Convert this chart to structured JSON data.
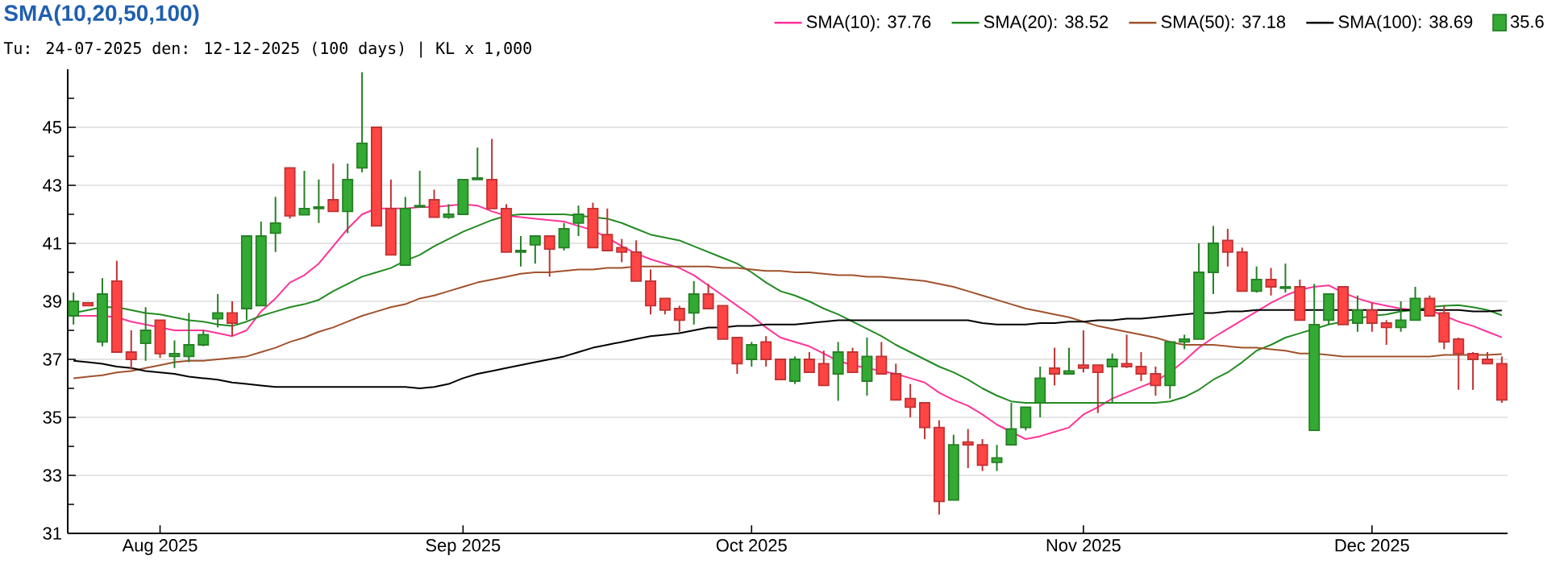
{
  "chart_data": {
    "type": "candlestick",
    "title": "SMA(10,20,50,100)",
    "subtitle": "Tu: 24-07-2025 den: 12-12-2025 (100 days) | KL x 1,000",
    "categories": [
      null,
      null,
      null,
      null,
      null,
      null,
      "Aug 2025",
      null,
      null,
      null,
      null,
      null,
      null,
      null,
      null,
      null,
      null,
      null,
      null,
      null,
      null,
      null,
      null,
      null,
      null,
      null,
      null,
      "Sep 2025",
      null,
      null,
      null,
      null,
      null,
      null,
      null,
      null,
      null,
      null,
      null,
      null,
      null,
      null,
      null,
      null,
      null,
      null,
      null,
      "Oct 2025",
      null,
      null,
      null,
      null,
      null,
      null,
      null,
      null,
      null,
      null,
      null,
      null,
      null,
      null,
      null,
      null,
      null,
      null,
      null,
      null,
      null,
      null,
      "Nov 2025",
      null,
      null,
      null,
      null,
      null,
      null,
      null,
      null,
      null,
      null,
      null,
      null,
      null,
      null,
      null,
      null,
      null,
      null,
      null,
      "Dec 2025",
      null,
      null,
      null,
      null,
      null,
      null,
      null,
      null,
      null
    ],
    "ylim": [
      31,
      47
    ],
    "yticks": [
      31,
      {
        "value": 32,
        "label": null
      },
      33,
      {
        "value": 34,
        "label": null
      },
      35,
      {
        "value": 36,
        "label": null
      },
      37,
      {
        "value": 38,
        "label": null
      },
      39,
      {
        "value": 40,
        "label": null
      },
      41,
      {
        "value": 42,
        "label": null
      },
      43,
      {
        "value": 44,
        "label": null
      },
      45,
      {
        "value": 46,
        "label": null
      }
    ],
    "grid": "y",
    "legend": "top",
    "series": [
      {
        "type": "line",
        "name": "SMA(10): 37.76",
        "color": "#ff3399",
        "values": [
          38.5,
          38.5,
          38.5,
          38.45,
          38.3,
          38.2,
          38.1,
          38.0,
          38.0,
          38.0,
          37.9,
          37.8,
          38.0,
          38.65,
          39.1,
          39.65,
          39.9,
          40.3,
          40.9,
          41.5,
          42.0,
          42.2,
          42.2,
          42.2,
          42.25,
          42.25,
          42.3,
          42.35,
          42.3,
          42.1,
          41.95,
          41.9,
          41.85,
          41.8,
          41.75,
          41.6,
          41.45,
          41.2,
          40.9,
          40.65,
          40.45,
          40.3,
          40.15,
          39.9,
          39.55,
          39.2,
          38.85,
          38.5,
          38.1,
          37.75,
          37.6,
          37.45,
          37.2,
          36.95,
          36.8,
          36.7,
          36.6,
          36.5,
          36.35,
          36.2,
          35.85,
          35.6,
          35.4,
          35.1,
          34.75,
          34.5,
          34.25,
          34.35,
          34.5,
          34.65,
          35.1,
          35.35,
          35.65,
          35.85,
          36.05,
          36.25,
          36.55,
          36.95,
          37.4,
          37.75,
          38.05,
          38.35,
          38.65,
          38.95,
          39.2,
          39.4,
          39.5,
          39.55,
          39.3,
          39.1,
          38.95,
          38.85,
          38.75,
          38.7,
          38.7,
          38.5,
          38.3,
          38.15,
          37.95,
          37.76
        ]
      },
      {
        "type": "line",
        "name": "SMA(20): 38.52",
        "color": "#228b22",
        "values": [
          38.6,
          38.7,
          38.8,
          38.8,
          38.7,
          38.6,
          38.55,
          38.45,
          38.35,
          38.3,
          38.2,
          38.15,
          38.3,
          38.5,
          38.65,
          38.8,
          38.9,
          39.05,
          39.35,
          39.6,
          39.85,
          40.0,
          40.15,
          40.4,
          40.6,
          40.9,
          41.15,
          41.4,
          41.6,
          41.8,
          41.95,
          42.0,
          42.0,
          42.0,
          42.0,
          41.95,
          41.9,
          41.85,
          41.7,
          41.5,
          41.3,
          41.2,
          41.1,
          40.9,
          40.7,
          40.5,
          40.3,
          40.0,
          39.65,
          39.35,
          39.2,
          39.0,
          38.75,
          38.55,
          38.3,
          38.05,
          37.8,
          37.5,
          37.25,
          37.0,
          36.75,
          36.55,
          36.3,
          36.0,
          35.75,
          35.55,
          35.5,
          35.5,
          35.5,
          35.5,
          35.5,
          35.5,
          35.5,
          35.5,
          35.5,
          35.5,
          35.55,
          35.7,
          35.95,
          36.3,
          36.55,
          36.9,
          37.3,
          37.5,
          37.75,
          37.9,
          38.05,
          38.2,
          38.3,
          38.4,
          38.5,
          38.55,
          38.65,
          38.7,
          38.8,
          38.85,
          38.87,
          38.8,
          38.7,
          38.52
        ]
      },
      {
        "type": "line",
        "name": "SMA(50): 37.18",
        "color": "#a0522d",
        "values": [
          36.35,
          36.4,
          36.45,
          36.55,
          36.6,
          36.7,
          36.8,
          36.9,
          36.95,
          36.95,
          37.0,
          37.05,
          37.1,
          37.25,
          37.4,
          37.6,
          37.75,
          37.95,
          38.1,
          38.3,
          38.5,
          38.65,
          38.8,
          38.9,
          39.1,
          39.2,
          39.35,
          39.5,
          39.65,
          39.75,
          39.85,
          39.95,
          40.0,
          40.0,
          40.05,
          40.1,
          40.1,
          40.15,
          40.15,
          40.2,
          40.2,
          40.2,
          40.2,
          40.2,
          40.2,
          40.15,
          40.15,
          40.1,
          40.05,
          40.05,
          40.0,
          40.0,
          39.95,
          39.9,
          39.9,
          39.85,
          39.85,
          39.8,
          39.75,
          39.7,
          39.6,
          39.5,
          39.35,
          39.2,
          39.05,
          38.9,
          38.75,
          38.65,
          38.55,
          38.45,
          38.3,
          38.15,
          38.05,
          37.95,
          37.85,
          37.75,
          37.6,
          37.5,
          37.5,
          37.5,
          37.45,
          37.4,
          37.4,
          37.35,
          37.3,
          37.2,
          37.2,
          37.15,
          37.1,
          37.1,
          37.1,
          37.1,
          37.1,
          37.1,
          37.1,
          37.15,
          37.15,
          37.15,
          37.15,
          37.18
        ]
      },
      {
        "type": "line",
        "name": "SMA(100): 38.69",
        "color": "#000000",
        "values": [
          36.95,
          36.9,
          36.85,
          36.75,
          36.7,
          36.6,
          36.55,
          36.5,
          36.4,
          36.35,
          36.3,
          36.2,
          36.15,
          36.1,
          36.05,
          36.05,
          36.05,
          36.05,
          36.05,
          36.05,
          36.05,
          36.05,
          36.05,
          36.05,
          36.0,
          36.05,
          36.15,
          36.35,
          36.5,
          36.6,
          36.7,
          36.8,
          36.9,
          37.0,
          37.1,
          37.25,
          37.4,
          37.5,
          37.6,
          37.7,
          37.8,
          37.85,
          37.9,
          38.0,
          38.1,
          38.1,
          38.15,
          38.15,
          38.2,
          38.2,
          38.2,
          38.25,
          38.3,
          38.35,
          38.35,
          38.35,
          38.35,
          38.35,
          38.35,
          38.35,
          38.35,
          38.35,
          38.35,
          38.25,
          38.2,
          38.2,
          38.2,
          38.25,
          38.25,
          38.3,
          38.3,
          38.35,
          38.35,
          38.4,
          38.4,
          38.45,
          38.5,
          38.55,
          38.6,
          38.6,
          38.65,
          38.65,
          38.7,
          38.7,
          38.7,
          38.7,
          38.7,
          38.7,
          38.7,
          38.7,
          38.7,
          38.7,
          38.7,
          38.7,
          38.7,
          38.7,
          38.7,
          38.65,
          38.65,
          38.69
        ]
      },
      {
        "name": "35.6",
        "color": "#33aa33",
        "colors": [
          "#33aa33",
          "#ff4444",
          "#33aa33",
          "#ff4444",
          "#ff4444",
          "#33aa33",
          "#ff4444",
          "#33aa33",
          "#33aa33",
          "#33aa33",
          "#33aa33",
          "#ff4444",
          "#33aa33",
          "#33aa33",
          "#33aa33",
          "#ff4444",
          "#33aa33",
          "#33aa33",
          "#ff4444",
          "#33aa33",
          "#33aa33",
          "#ff4444",
          "#ff4444",
          "#33aa33",
          "#33aa33",
          "#ff4444",
          "#33aa33",
          "#33aa33",
          "#33aa33",
          "#ff4444",
          "#ff4444",
          "#33aa33",
          "#33aa33",
          "#ff4444",
          "#33aa33",
          "#33aa33",
          "#ff4444",
          "#ff4444",
          "#ff4444",
          "#ff4444",
          "#ff4444",
          "#ff4444",
          "#ff4444",
          "#33aa33",
          "#ff4444",
          "#ff4444",
          "#ff4444",
          "#33aa33",
          "#ff4444",
          "#ff4444",
          "#33aa33",
          "#ff4444",
          "#ff4444",
          "#33aa33",
          "#ff4444",
          "#33aa33",
          "#ff4444",
          "#ff4444",
          "#ff4444",
          "#ff4444",
          "#ff4444",
          "#33aa33",
          "#ff4444",
          "#ff4444",
          "#33aa33",
          "#33aa33",
          "#33aa33",
          "#33aa33",
          "#ff4444",
          "#33aa33",
          "#ff4444",
          "#ff4444",
          "#33aa33",
          "#ff4444",
          "#ff4444",
          "#ff4444",
          "#33aa33",
          "#33aa33",
          "#33aa33",
          "#33aa33",
          "#ff4444",
          "#ff4444",
          "#33aa33",
          "#ff4444",
          "#33aa33",
          "#ff4444",
          "#33aa33",
          "#33aa33",
          "#ff4444",
          "#33aa33",
          "#ff4444",
          "#ff4444",
          "#33aa33",
          "#33aa33",
          "#ff4444",
          "#ff4444",
          "#ff4444",
          "#ff4444",
          "#ff4444",
          "#ff4444"
        ],
        "ohlc": [
          [
            38.5,
            39.3,
            38.2,
            39.0
          ],
          [
            38.95,
            38.95,
            38.85,
            38.85
          ],
          [
            37.6,
            39.8,
            37.45,
            39.25
          ],
          [
            39.7,
            40.4,
            37.25,
            37.25
          ],
          [
            37.25,
            38.0,
            36.65,
            37.0
          ],
          [
            37.55,
            38.8,
            36.95,
            38.0
          ],
          [
            38.35,
            38.35,
            37.05,
            37.2
          ],
          [
            37.1,
            37.65,
            36.7,
            37.2
          ],
          [
            37.1,
            38.6,
            36.9,
            37.5
          ],
          [
            37.5,
            38.0,
            37.45,
            37.85
          ],
          [
            38.4,
            39.25,
            38.1,
            38.6
          ],
          [
            38.6,
            39.0,
            37.8,
            38.25
          ],
          [
            38.75,
            41.25,
            38.35,
            41.25
          ],
          [
            38.85,
            41.75,
            38.85,
            41.25
          ],
          [
            41.35,
            42.6,
            40.7,
            41.7
          ],
          [
            43.6,
            43.6,
            41.85,
            41.95
          ],
          [
            41.98,
            43.5,
            41.98,
            42.2
          ],
          [
            42.2,
            43.2,
            41.7,
            42.25
          ],
          [
            42.5,
            43.75,
            42.1,
            42.1
          ],
          [
            42.1,
            43.75,
            41.35,
            43.2
          ],
          [
            43.6,
            46.9,
            43.45,
            44.45
          ],
          [
            45.0,
            45.0,
            41.6,
            41.6
          ],
          [
            42.2,
            43.2,
            40.6,
            40.6
          ],
          [
            40.25,
            42.6,
            40.25,
            42.2
          ],
          [
            42.25,
            43.5,
            42.25,
            42.3
          ],
          [
            42.5,
            42.85,
            41.9,
            41.9
          ],
          [
            41.9,
            42.35,
            41.85,
            42.0
          ],
          [
            42.0,
            43.2,
            42.0,
            43.2
          ],
          [
            43.2,
            44.3,
            43.2,
            43.25
          ],
          [
            43.2,
            44.6,
            42.2,
            42.2
          ],
          [
            42.2,
            42.35,
            40.7,
            40.7
          ],
          [
            40.7,
            41.25,
            40.2,
            40.75
          ],
          [
            40.95,
            41.25,
            40.3,
            41.25
          ],
          [
            41.25,
            41.25,
            39.85,
            40.8
          ],
          [
            40.85,
            41.7,
            40.75,
            41.5
          ],
          [
            41.7,
            42.3,
            41.25,
            42.0
          ],
          [
            42.2,
            42.4,
            40.85,
            40.85
          ],
          [
            41.3,
            42.2,
            40.75,
            40.75
          ],
          [
            40.85,
            41.15,
            40.35,
            40.7
          ],
          [
            40.7,
            41.1,
            39.7,
            39.7
          ],
          [
            39.7,
            40.1,
            38.55,
            38.85
          ],
          [
            39.1,
            39.1,
            38.55,
            38.7
          ],
          [
            38.75,
            38.85,
            37.95,
            38.35
          ],
          [
            38.6,
            39.7,
            38.2,
            39.25
          ],
          [
            39.25,
            39.6,
            38.75,
            38.75
          ],
          [
            38.85,
            38.85,
            37.7,
            37.7
          ],
          [
            37.75,
            37.75,
            36.5,
            36.85
          ],
          [
            37.0,
            37.6,
            36.75,
            37.5
          ],
          [
            37.6,
            37.8,
            36.75,
            37.0
          ],
          [
            37.0,
            37.0,
            36.3,
            36.3
          ],
          [
            36.25,
            37.1,
            36.15,
            37.0
          ],
          [
            37.0,
            37.25,
            36.55,
            36.55
          ],
          [
            36.85,
            37.3,
            36.1,
            36.1
          ],
          [
            36.5,
            37.6,
            35.57,
            37.25
          ],
          [
            37.25,
            37.4,
            36.55,
            36.55
          ],
          [
            36.25,
            37.75,
            35.75,
            37.1
          ],
          [
            37.1,
            37.6,
            36.5,
            36.5
          ],
          [
            36.5,
            36.85,
            35.6,
            35.6
          ],
          [
            35.65,
            36.15,
            35.0,
            35.35
          ],
          [
            35.5,
            35.5,
            34.25,
            34.65
          ],
          [
            34.65,
            34.9,
            31.65,
            32.1
          ],
          [
            32.15,
            34.4,
            32.15,
            34.05
          ],
          [
            34.15,
            34.6,
            33.25,
            34.05
          ],
          [
            34.05,
            34.25,
            33.15,
            33.35
          ],
          [
            33.45,
            34.05,
            33.15,
            33.6
          ],
          [
            34.05,
            35.5,
            34.05,
            34.6
          ],
          [
            34.65,
            35.35,
            34.55,
            35.35
          ],
          [
            35.5,
            36.75,
            35.0,
            36.35
          ],
          [
            36.7,
            37.4,
            36.1,
            36.5
          ],
          [
            36.5,
            37.4,
            36.5,
            36.6
          ],
          [
            36.8,
            38.0,
            36.55,
            36.7
          ],
          [
            36.8,
            36.8,
            35.15,
            36.55
          ],
          [
            36.75,
            37.2,
            35.5,
            37.0
          ],
          [
            36.85,
            37.85,
            36.7,
            36.75
          ],
          [
            36.75,
            37.25,
            36.25,
            36.5
          ],
          [
            36.5,
            36.75,
            35.75,
            36.1
          ],
          [
            36.1,
            37.6,
            35.65,
            37.6
          ],
          [
            37.6,
            37.85,
            37.35,
            37.7
          ],
          [
            37.7,
            41.0,
            37.7,
            40.0
          ],
          [
            40.0,
            41.6,
            39.25,
            41.0
          ],
          [
            41.1,
            41.5,
            40.2,
            40.7
          ],
          [
            40.7,
            40.85,
            39.35,
            39.35
          ],
          [
            39.35,
            40.2,
            39.3,
            39.75
          ],
          [
            39.75,
            40.15,
            39.2,
            39.5
          ],
          [
            39.45,
            40.3,
            39.3,
            39.5
          ],
          [
            39.5,
            39.75,
            38.35,
            38.35
          ],
          [
            34.55,
            39.6,
            34.55,
            38.2
          ],
          [
            38.35,
            39.25,
            38.2,
            39.25
          ],
          [
            39.5,
            39.5,
            38.2,
            38.2
          ],
          [
            38.25,
            39.2,
            37.95,
            38.7
          ],
          [
            38.7,
            38.95,
            37.95,
            38.25
          ],
          [
            38.25,
            38.35,
            37.5,
            38.1
          ],
          [
            38.1,
            39.0,
            37.95,
            38.35
          ],
          [
            38.35,
            39.5,
            38.35,
            39.1
          ],
          [
            39.1,
            39.2,
            38.5,
            38.5
          ],
          [
            38.6,
            38.85,
            37.35,
            37.6
          ],
          [
            37.7,
            37.75,
            35.95,
            37.2
          ],
          [
            37.2,
            37.25,
            35.95,
            37.0
          ],
          [
            37.0,
            37.25,
            36.85,
            36.85
          ],
          [
            36.85,
            37.1,
            35.5,
            35.6
          ]
        ]
      }
    ]
  }
}
